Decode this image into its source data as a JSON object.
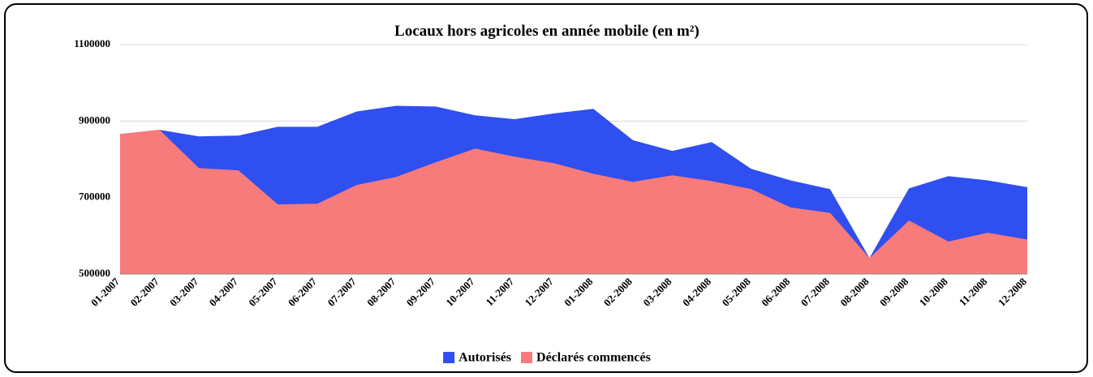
{
  "chart_data": {
    "type": "area",
    "title": "Locaux hors agricoles en année mobile (en m²)",
    "categories": [
      "01-2007",
      "02-2007",
      "03-2007",
      "04-2007",
      "05-2007",
      "06-2007",
      "07-2007",
      "08-2007",
      "09-2007",
      "10-2007",
      "11-2007",
      "12-2007",
      "01-2008",
      "02-2008",
      "03-2008",
      "04-2008",
      "05-2008",
      "06-2008",
      "07-2008",
      "08-2008",
      "09-2008",
      "10-2008",
      "11-2008",
      "12-2008"
    ],
    "series": [
      {
        "name": "Autorisés",
        "color": "#2f4ff0",
        "values": [
          866000,
          877000,
          860000,
          862000,
          885000,
          885000,
          925000,
          940000,
          938000,
          915000,
          905000,
          920000,
          932000,
          850000,
          822000,
          845000,
          775000,
          745000,
          722000,
          542000,
          724000,
          756000,
          745000,
          727000
        ]
      },
      {
        "name": "Déclarés commencés",
        "color": "#f77b7b",
        "values": [
          866000,
          877000,
          777000,
          771000,
          682000,
          684000,
          733000,
          754000,
          792000,
          828000,
          807000,
          790000,
          762000,
          741000,
          758000,
          743000,
          722000,
          674000,
          660000,
          542000,
          640000,
          585000,
          608000,
          590000
        ]
      }
    ],
    "ylim": [
      500000,
      1100000
    ],
    "yticks": [
      500000,
      700000,
      900000,
      1100000
    ],
    "grid": true,
    "legend": "bottom"
  }
}
